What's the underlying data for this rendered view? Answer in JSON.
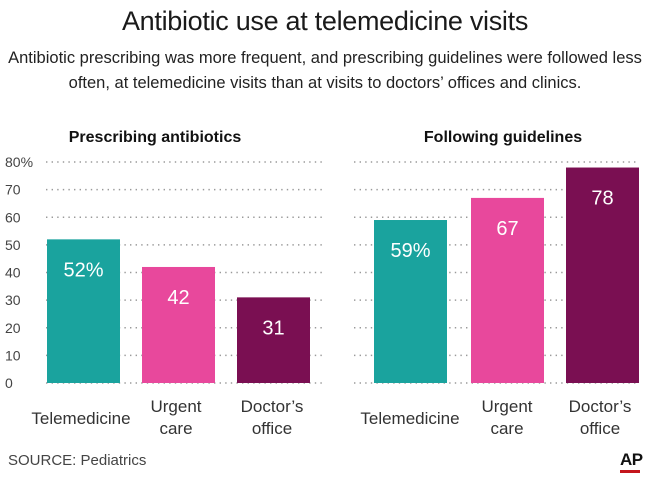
{
  "header": {
    "title": "Antibiotic use at telemedicine visits",
    "subtitle": "Antibiotic prescribing was more frequent, and prescribing guidelines were followed less often, at telemedicine visits than at visits to doctors’ offices and clinics."
  },
  "footer": {
    "source": "SOURCE: Pediatrics",
    "logo": "AP"
  },
  "colors": {
    "telemedicine": "#1aa39e",
    "urgent_care": "#e8489c",
    "doctors_office": "#7a0f52",
    "grid": "#9a9a9a"
  },
  "chart_data": [
    {
      "type": "bar",
      "title": "Prescribing antibiotics",
      "categories": [
        "Telemedicine",
        "Urgent care",
        "Doctor’s office"
      ],
      "values": [
        52,
        42,
        31
      ],
      "value_labels": [
        "52%",
        "42",
        "31"
      ],
      "ylim": [
        0,
        80
      ],
      "yticks": [
        0,
        10,
        20,
        30,
        40,
        50,
        60,
        70,
        80
      ],
      "ytick_labels": [
        "0",
        "10",
        "20",
        "30",
        "40",
        "50",
        "60",
        "70",
        "80%"
      ],
      "grid": true
    },
    {
      "type": "bar",
      "title": "Following guidelines",
      "categories": [
        "Telemedicine",
        "Urgent care",
        "Doctor’s office"
      ],
      "values": [
        59,
        67,
        78
      ],
      "value_labels": [
        "59%",
        "67",
        "78"
      ],
      "ylim": [
        0,
        80
      ],
      "grid": true
    }
  ]
}
